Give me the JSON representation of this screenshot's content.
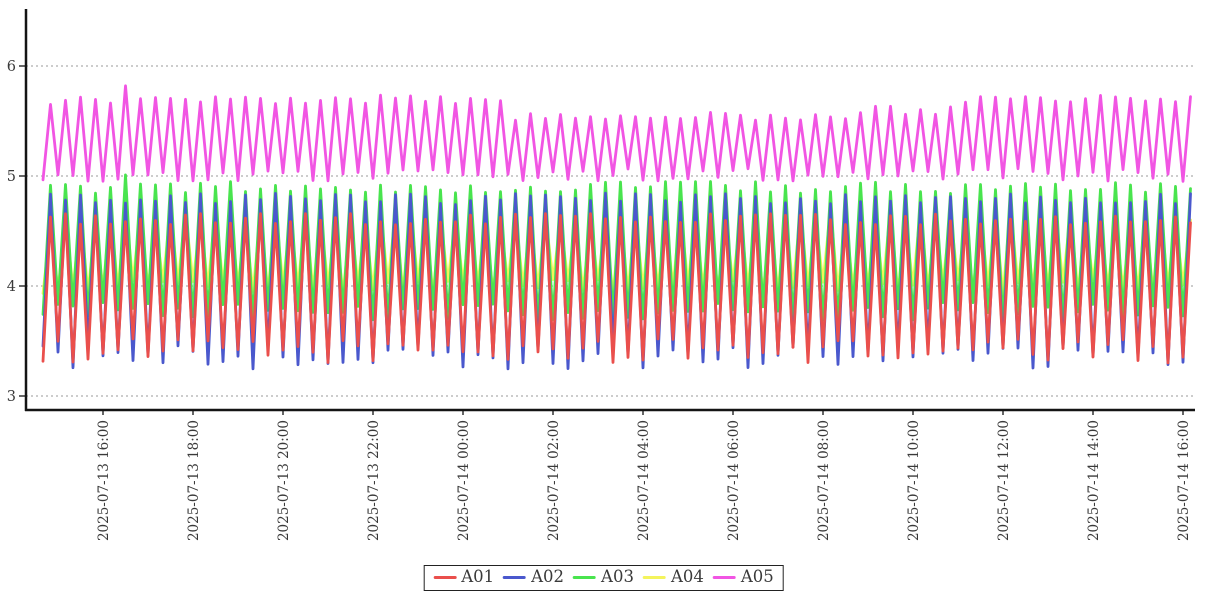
{
  "page": {
    "background": "#ffffff"
  },
  "chart_data": {
    "type": "line",
    "title": "",
    "xlabel": "",
    "ylabel": "",
    "x_start": "2025-07-13 14:40",
    "x_end": "2025-07-14 16:10",
    "sample_interval_minutes": 10,
    "oscillation_period_minutes": 20,
    "pattern": "each series alternates between its low band and high band on every 10-minute sample, producing a dense zigzag with a 20-minute period across the full time range",
    "ylim": [
      2.9,
      6.5
    ],
    "yticks": [
      3,
      4,
      5,
      6
    ],
    "xticks": [
      "2025-07-13 16:00",
      "2025-07-13 18:00",
      "2025-07-13 20:00",
      "2025-07-13 22:00",
      "2025-07-14 00:00",
      "2025-07-14 02:00",
      "2025-07-14 04:00",
      "2025-07-14 06:00",
      "2025-07-14 08:00",
      "2025-07-14 10:00",
      "2025-07-14 12:00",
      "2025-07-14 14:00",
      "2025-07-14 16:00"
    ],
    "grid": "horizontal dotted gray lines at each y tick",
    "legend_position": "bottom-center",
    "axis_color": "#141414",
    "grid_color": "#9a9a9a",
    "tick_label_color": "#3a3a3a",
    "series": [
      {
        "name": "A01",
        "color": "#ea4f4c",
        "low": [
          3.3,
          3.52
        ],
        "high": [
          4.55,
          4.66
        ]
      },
      {
        "name": "A02",
        "color": "#4a58cd",
        "low": [
          3.24,
          3.46
        ],
        "high": [
          4.74,
          4.85
        ]
      },
      {
        "name": "A03",
        "color": "#49e44e",
        "low": [
          3.68,
          3.85
        ],
        "high": [
          4.84,
          4.95
        ],
        "anomalies": [
          {
            "time": "2025-07-13 16:30",
            "value": 5.01
          }
        ]
      },
      {
        "name": "A04",
        "color": "#f4f45c",
        "low": [
          3.92,
          4.06
        ],
        "high": [
          4.55,
          4.7
        ]
      },
      {
        "name": "A05",
        "color": "#f155e3",
        "low": [
          4.95,
          5.07
        ],
        "high": [
          5.66,
          5.74
        ],
        "high_segments": [
          {
            "until": "2025-07-14 00:50",
            "high": [
              5.65,
              5.74
            ]
          },
          {
            "until": "2025-07-14 08:30",
            "high": [
              5.5,
              5.58
            ]
          },
          {
            "until": "2025-07-14 11:00",
            "high": [
              5.56,
              5.64
            ]
          },
          {
            "until": "2025-07-14 16:10",
            "high": [
              5.66,
              5.74
            ]
          }
        ],
        "anomalies": [
          {
            "time": "2025-07-13 16:30",
            "value": 5.82
          }
        ]
      }
    ],
    "draw_order": [
      "A04",
      "A03",
      "A02",
      "A01",
      "A05"
    ]
  }
}
